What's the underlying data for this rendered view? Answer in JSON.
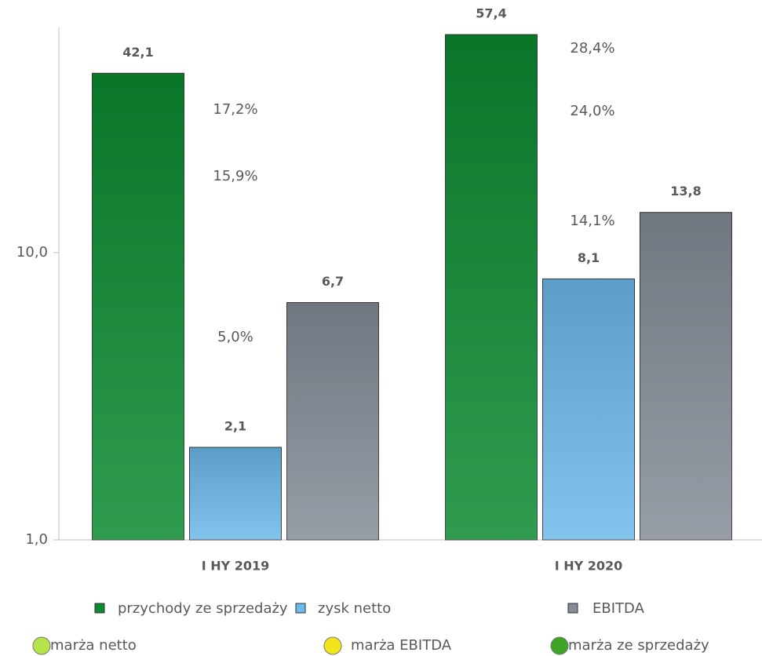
{
  "chart_data": {
    "type": "bar",
    "log_scale": true,
    "categories": [
      "I HY 2019",
      "I HY 2020"
    ],
    "ylim": [
      1,
      60
    ],
    "yticks": [
      {
        "value": 1,
        "label": "1,0"
      },
      {
        "value": 10,
        "label": "10,0"
      }
    ],
    "series": [
      {
        "name": "przychody ze sprzedaży",
        "color": "#0b8a2f",
        "values": [
          42.1,
          57.4
        ],
        "value_labels": [
          "42,1",
          "57,4"
        ]
      },
      {
        "name": "zysk netto",
        "color": "#6cb9eb",
        "values": [
          2.1,
          8.1
        ],
        "value_labels": [
          "2,1",
          "8,1"
        ]
      },
      {
        "name": "EBITDA",
        "color": "#858c96",
        "values": [
          6.7,
          13.8
        ],
        "value_labels": [
          "6,7",
          "13,8"
        ]
      }
    ],
    "margin_series": [
      {
        "name": "marża netto",
        "color": "#b5e44a",
        "values": [
          5.0,
          14.1
        ],
        "value_labels": [
          "5,0%",
          "14,1%"
        ]
      },
      {
        "name": "marża EBITDA",
        "color": "#f2e41a",
        "values": [
          15.9,
          24.0
        ],
        "value_labels": [
          "15,9%",
          "24,0%"
        ]
      },
      {
        "name": "marża ze sprzedaży",
        "color": "#3ea524",
        "values": [
          17.2,
          28.4
        ],
        "value_labels": [
          "17,2%",
          "28,4%"
        ]
      }
    ]
  }
}
